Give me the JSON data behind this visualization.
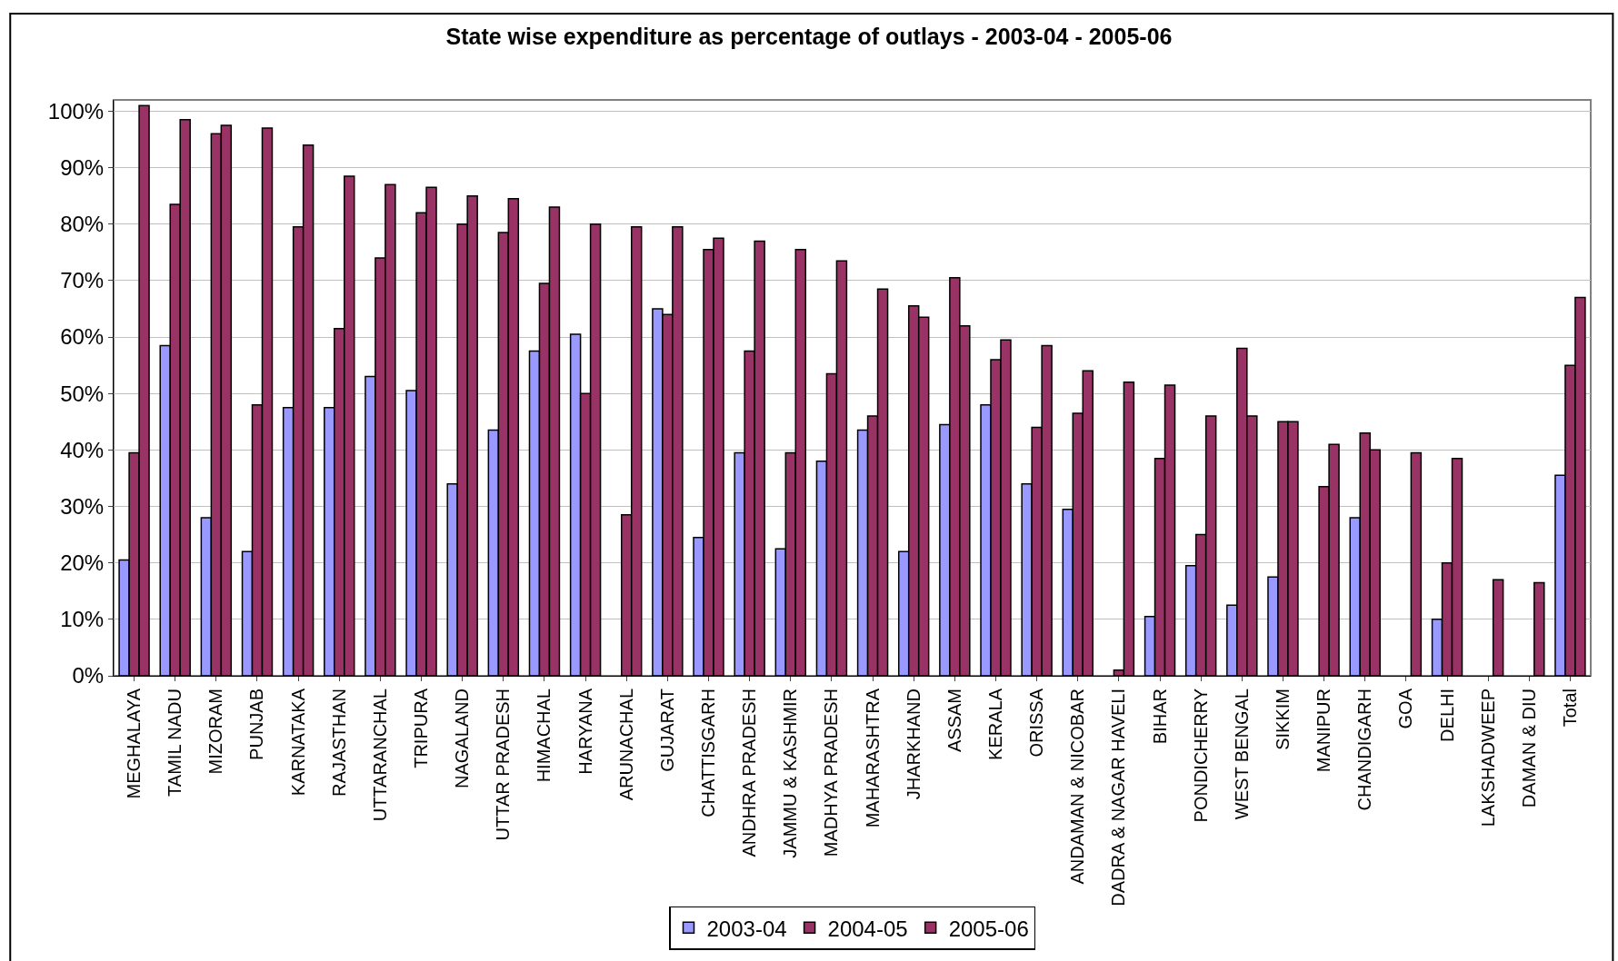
{
  "chart_data": {
    "type": "bar",
    "title": "State wise expenditure as percentage of outlays - 2003-04 - 2005-06",
    "categories": [
      "MEGHALAYA",
      "TAMIL NADU",
      "MIZORAM",
      "PUNJAB",
      "KARNATAKA",
      "RAJASTHAN",
      "UTTARANCHAL",
      "TRIPURA",
      "NAGALAND",
      "UTTAR PRADESH",
      "HIMACHAL",
      "HARYANA",
      "ARUNACHAL",
      "GUJARAT",
      "CHATTISGARH",
      "ANDHRA PRADESH",
      "JAMMU & KASHMIR",
      "MADHYA PRADESH",
      "MAHARASHTRA",
      "JHARKHAND",
      "ASSAM",
      "KERALA",
      "ORISSA",
      "ANDAMAN & NICOBAR",
      "DADRA & NAGAR HAVELI",
      "BIHAR",
      "PONDICHERRY",
      "WEST BENGAL",
      "SIKKIM",
      "MANIPUR",
      "CHANDIGARH",
      "GOA",
      "DELHI",
      "LAKSHADWEEP",
      "DAMAN & DIU",
      "Total"
    ],
    "series": [
      {
        "name": "2003-04",
        "color": "#9999ff",
        "values": [
          20.5,
          58.5,
          28,
          22,
          47.5,
          47.5,
          53,
          50.5,
          34,
          43.5,
          57.5,
          60.5,
          null,
          65,
          24.5,
          39.5,
          22.5,
          38,
          43.5,
          22,
          44.5,
          48,
          34,
          29.5,
          null,
          10.5,
          19.5,
          12.5,
          17.5,
          null,
          28,
          null,
          10,
          null,
          null,
          35.5
        ]
      },
      {
        "name": "2004-05",
        "color": "#993366",
        "values": [
          39.5,
          83.5,
          96,
          48,
          79.5,
          61.5,
          74,
          82,
          80,
          78.5,
          69.5,
          50,
          28.5,
          64,
          75.5,
          57.5,
          39.5,
          53.5,
          46,
          65.5,
          70.5,
          56,
          44,
          46.5,
          1,
          38.5,
          25,
          58,
          45,
          33.5,
          43,
          null,
          20,
          null,
          null,
          55
        ]
      },
      {
        "name": "2005-06",
        "color": "#993366",
        "values": [
          101,
          98.5,
          97.5,
          97,
          94,
          88.5,
          87,
          86.5,
          85,
          84.5,
          83,
          80,
          79.5,
          79.5,
          77.5,
          77,
          75.5,
          73.5,
          68.5,
          63.5,
          62,
          59.5,
          58.5,
          54,
          52,
          51.5,
          46,
          46,
          45,
          41,
          40,
          39.5,
          38.5,
          17,
          16.5,
          67
        ]
      }
    ],
    "ylim": [
      0,
      102
    ],
    "yticks": [
      {
        "value": 0,
        "label": "0%"
      },
      {
        "value": 10,
        "label": "10%"
      },
      {
        "value": 20,
        "label": "20%"
      },
      {
        "value": 30,
        "label": "30%"
      },
      {
        "value": 40,
        "label": "40%"
      },
      {
        "value": 50,
        "label": "50%"
      },
      {
        "value": 60,
        "label": "60%"
      },
      {
        "value": 70,
        "label": "70%"
      },
      {
        "value": 80,
        "label": "80%"
      },
      {
        "value": 90,
        "label": "90%"
      },
      {
        "value": 100,
        "label": "100%"
      }
    ],
    "grid": "y",
    "legend": "bottom"
  }
}
